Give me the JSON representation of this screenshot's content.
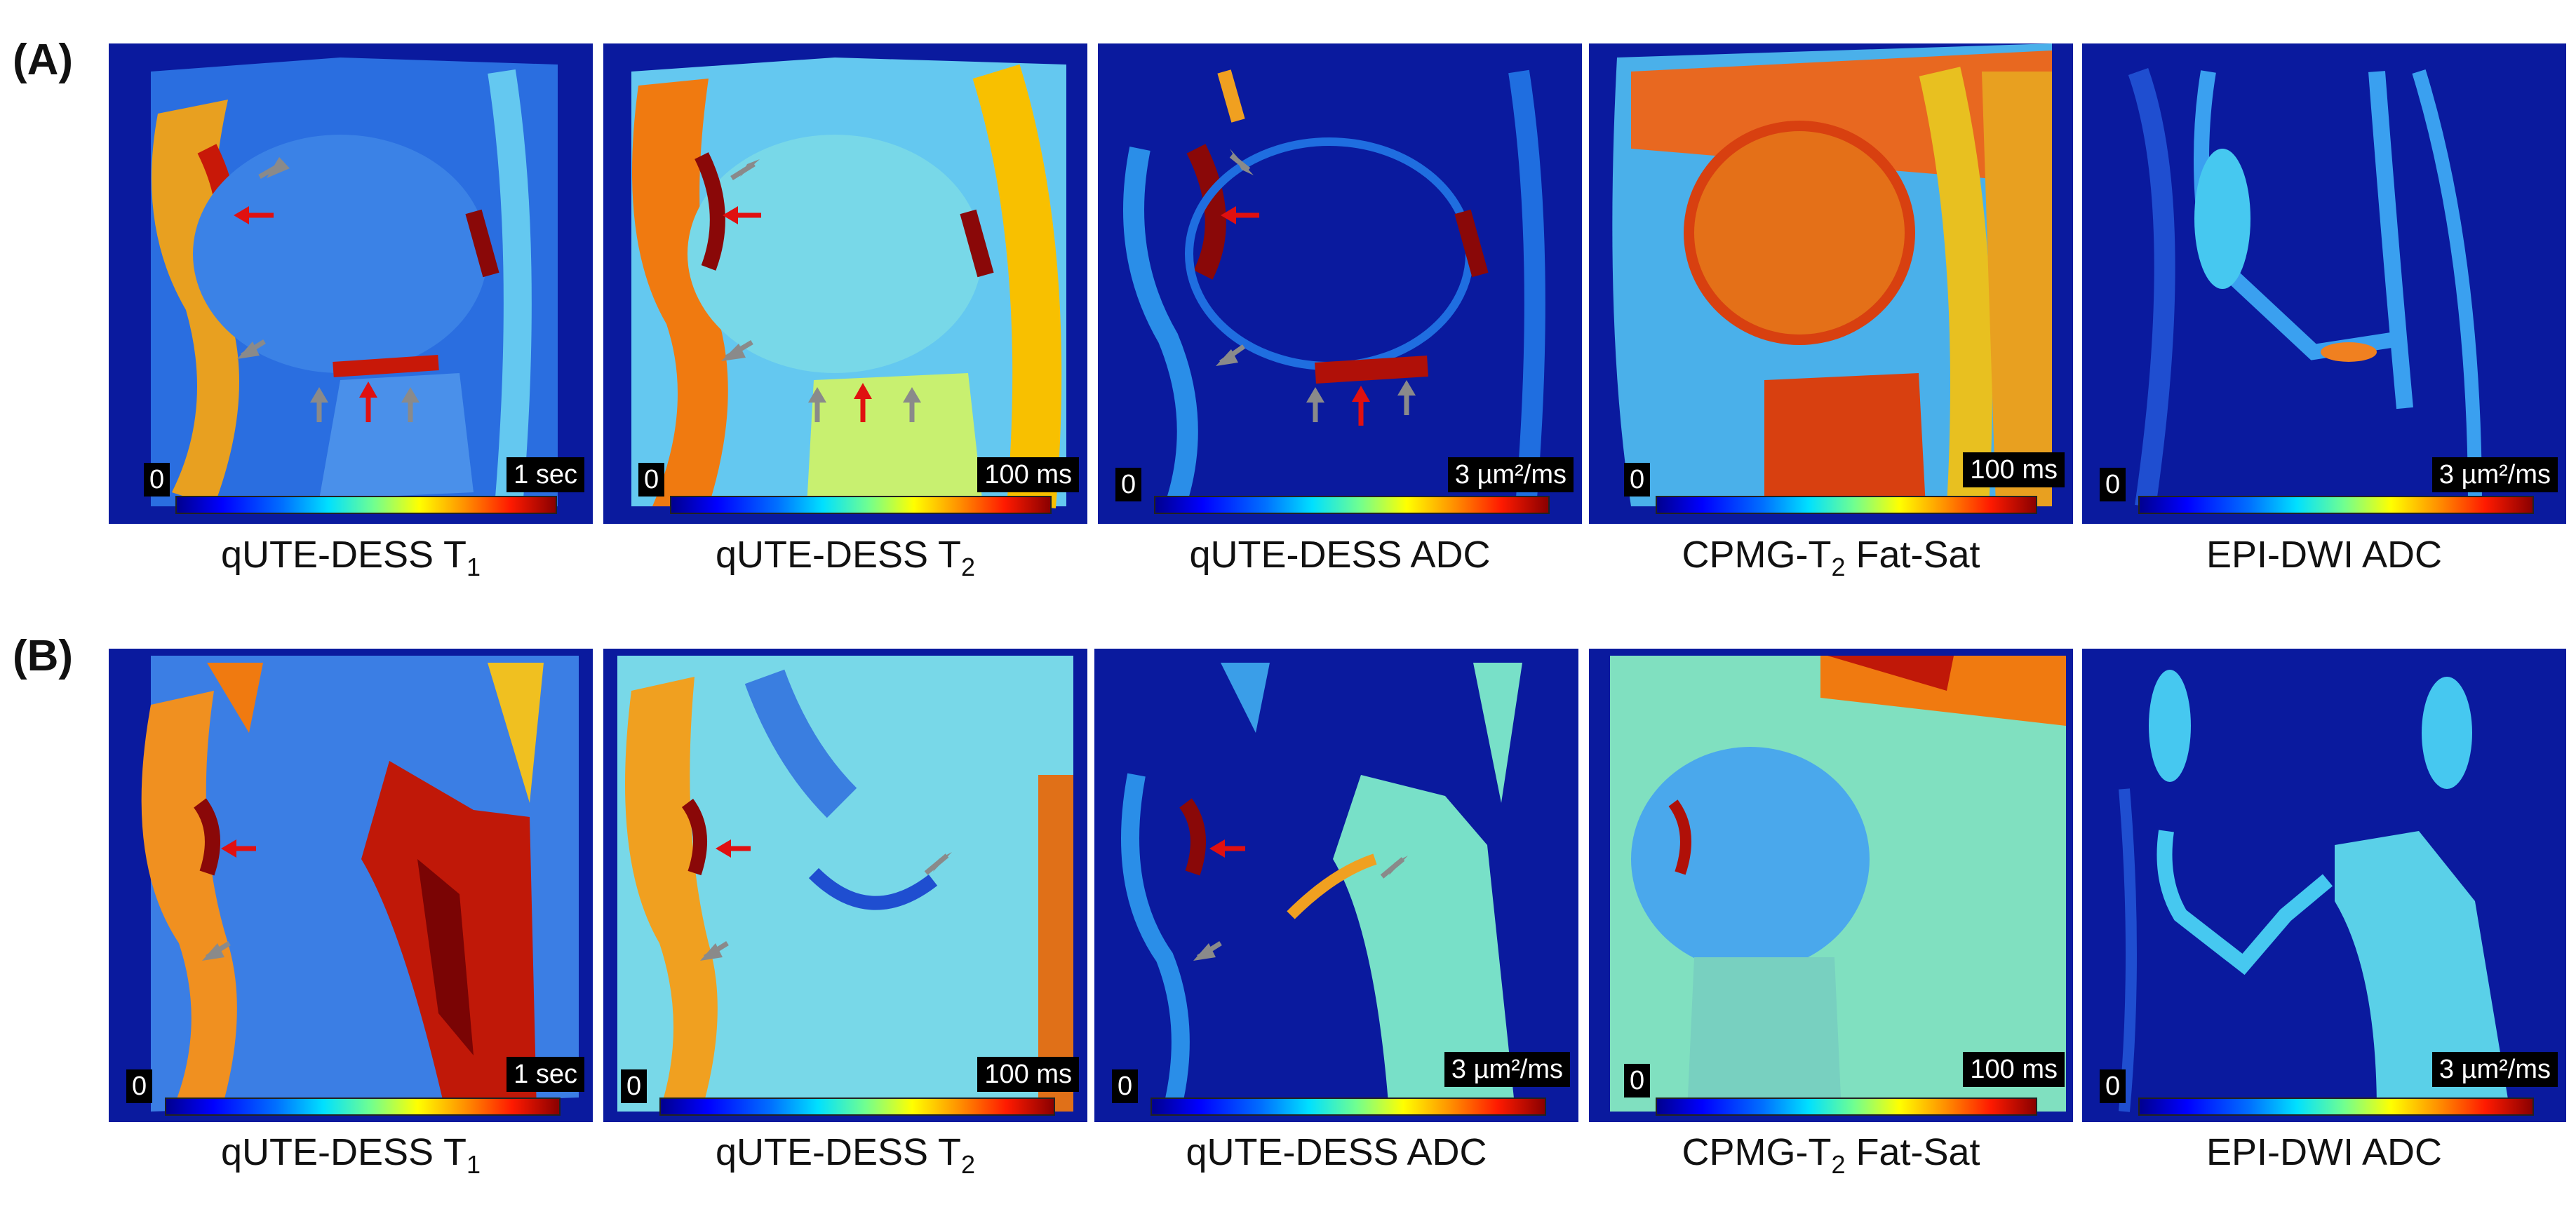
{
  "rows": [
    {
      "label": "(A)",
      "panels": [
        {
          "caption_main": "qUTE-DESS T",
          "caption_sub": "1",
          "zero": "0",
          "max": "1 sec"
        },
        {
          "caption_main": "qUTE-DESS T",
          "caption_sub": "2",
          "zero": "0",
          "max": "100 ms"
        },
        {
          "caption_main": "qUTE-DESS ADC",
          "caption_sub": "",
          "zero": "0",
          "max": "3 µm²/ms"
        },
        {
          "caption_main": "CPMG-T",
          "caption_sub": "2",
          "caption_after": " Fat-Sat",
          "zero": "0",
          "max": "100 ms"
        },
        {
          "caption_main": "EPI-DWI ADC",
          "caption_sub": "",
          "zero": "0",
          "max": "3 µm²/ms"
        }
      ]
    },
    {
      "label": "(B)",
      "panels": [
        {
          "caption_main": "qUTE-DESS T",
          "caption_sub": "1",
          "zero": "0",
          "max": "1 sec"
        },
        {
          "caption_main": "qUTE-DESS T",
          "caption_sub": "2",
          "zero": "0",
          "max": "100 ms"
        },
        {
          "caption_main": "qUTE-DESS ADC",
          "caption_sub": "",
          "zero": "0",
          "max": "3 µm²/ms"
        },
        {
          "caption_main": "CPMG-T",
          "caption_sub": "2",
          "caption_after": " Fat-Sat",
          "zero": "0",
          "max": "100 ms"
        },
        {
          "caption_main": "EPI-DWI ADC",
          "caption_sub": "",
          "zero": "0",
          "max": "3 µm²/ms"
        }
      ]
    }
  ],
  "colormap": "jet",
  "colors": {
    "background": "#06108c",
    "arrow_red": "#e01010",
    "arrow_gray": "#8a8a8a"
  }
}
